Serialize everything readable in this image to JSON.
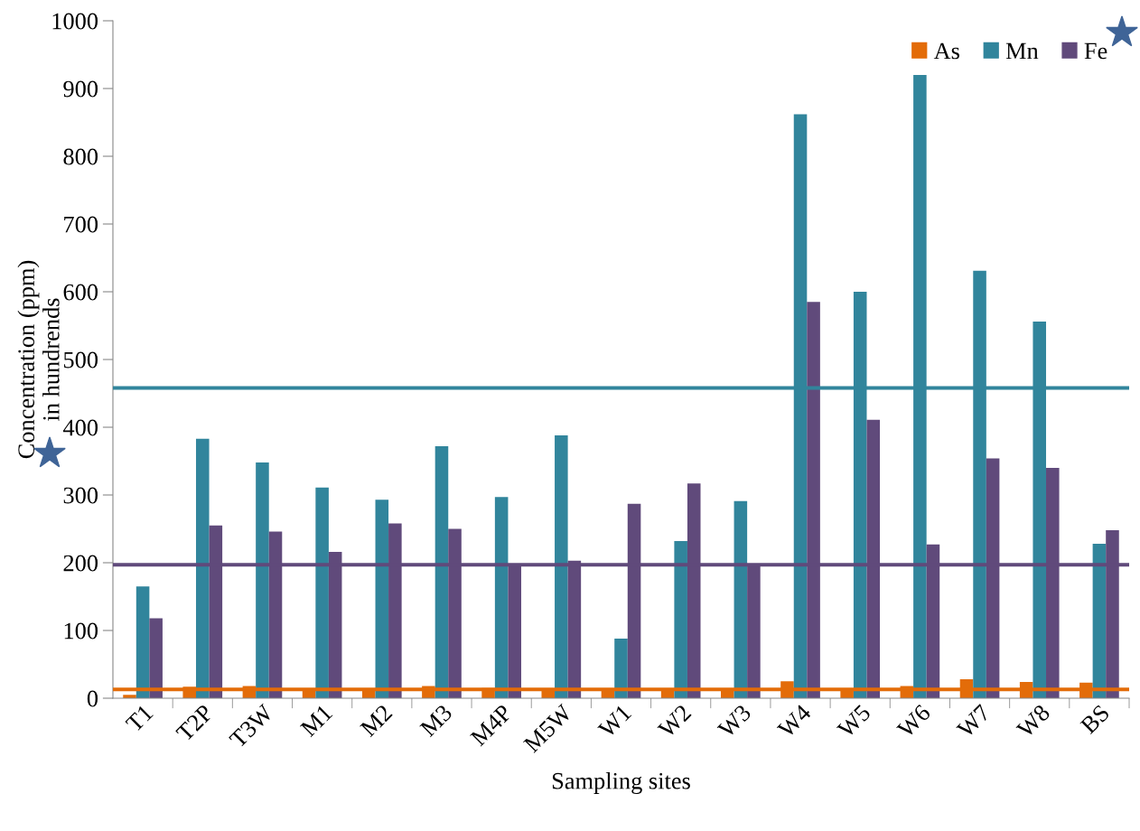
{
  "chart_data": {
    "type": "bar",
    "xlabel": "Sampling sites",
    "ylabel": "Concentration (ppm)\nin hundrends",
    "categories": [
      "T1",
      "T2P",
      "T3W",
      "M1",
      "M2",
      "M3",
      "M4P",
      "M5W",
      "W1",
      "W2",
      "W3",
      "W4",
      "W5",
      "W6",
      "W7",
      "W8",
      "BS"
    ],
    "series": [
      {
        "name": "As",
        "color": "#e36c09",
        "values": [
          5,
          17,
          18,
          12,
          12,
          18,
          15,
          12,
          12,
          12,
          12,
          25,
          13,
          18,
          28,
          24,
          23
        ]
      },
      {
        "name": "Mn",
        "color": "#31859c",
        "values": [
          165,
          383,
          348,
          311,
          293,
          372,
          297,
          388,
          88,
          232,
          291,
          862,
          600,
          920,
          631,
          556,
          228
        ]
      },
      {
        "name": "Fe",
        "color": "#604a7b",
        "values": [
          118,
          255,
          246,
          216,
          258,
          250,
          197,
          203,
          287,
          317,
          197,
          585,
          411,
          227,
          354,
          340,
          248
        ]
      }
    ],
    "ylim": [
      0,
      1000
    ],
    "yticks": [
      0,
      100,
      200,
      300,
      400,
      500,
      600,
      700,
      800,
      900,
      1000
    ],
    "ref_lines": [
      {
        "axis": "y",
        "value": 458,
        "color": "#31859c",
        "line_style": "solid"
      },
      {
        "axis": "y",
        "value": 197,
        "color": "#604a7b",
        "line_style": "solid"
      },
      {
        "axis": "y",
        "value": 13,
        "color": "#e36c09",
        "line_style": "solid"
      }
    ],
    "grid": false,
    "legend": "top right"
  }
}
